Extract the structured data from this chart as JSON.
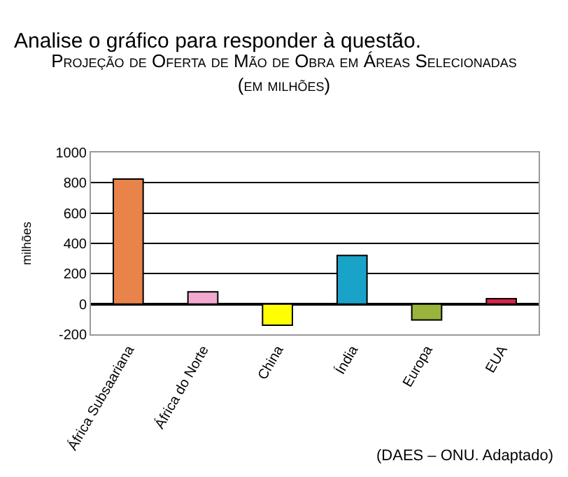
{
  "chart_data": {
    "type": "bar",
    "title": "Projeção de Oferta de Mão de Obra em Áreas Selecionadas",
    "subtitle": "(em milhões)",
    "ylabel": "milhões",
    "categories": [
      "África Subsaariana",
      "África do Norte",
      "China",
      "Índia",
      "Europa",
      "EUA"
    ],
    "values": [
      825,
      80,
      -140,
      320,
      -105,
      35
    ],
    "colors": [
      "#e8834a",
      "#f2a9cf",
      "#ffff00",
      "#1aa3c8",
      "#99b43c",
      "#d8244a"
    ],
    "ylim": [
      -200,
      1000
    ],
    "yticks": [
      -200,
      0,
      200,
      400,
      600,
      800,
      1000
    ],
    "grid": "y",
    "legend": false,
    "annotations": [
      "Analise o gráfico para responder à questão.",
      "(DAES – ONU. Adaptado)"
    ]
  }
}
